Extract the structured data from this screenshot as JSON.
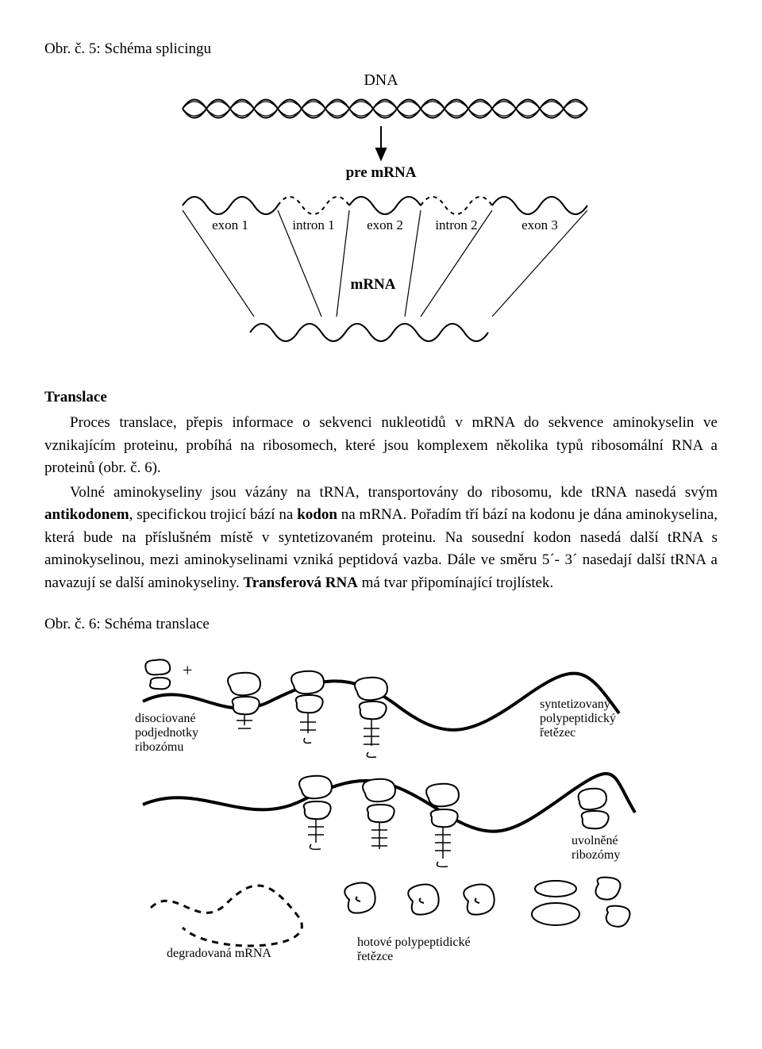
{
  "caption1": "Obr. č. 5: Schéma splicingu",
  "diagram1": {
    "label_dna": "DNA",
    "label_pre": "pre mRNA",
    "label_mrna": "mRNA",
    "segments": [
      "exon 1",
      "intron 1",
      "exon 2",
      "intron 2",
      "exon 3"
    ],
    "colors": {
      "stroke": "#000000",
      "bg": "#ffffff"
    }
  },
  "heading": "Translace",
  "para1_parts": {
    "a": "Proces translace, přepis informace o sekvenci nukleotidů v mRNA do sekvence aminokyselin ve vznikajícím proteinu, probíhá na ribosomech, které jsou komplexem několika typů ribosomální RNA a proteinů (obr. č. 6)."
  },
  "para2_parts": {
    "a": "Volné aminokyseliny jsou vázány na tRNA, transportovány do ribosomu, kde tRNA nasedá svým ",
    "b1": "antikodonem",
    "b": ", specifickou trojicí bází na ",
    "b2": "kodon",
    "c": " na mRNA. Pořadím tří bází na kodonu je dána aminokyselina, která bude na příslušném místě v syntetizovaném proteinu. Na sousední kodon nasedá další tRNA s aminokyselinou, mezi aminokyselinami vzniká peptidová vazba. Dále ve směru 5´- 3´ nasedají další tRNA a navazují se další aminokyseliny. ",
    "b3": "Transferová RNA",
    "d": " má tvar připomínající trojlístek."
  },
  "caption2": "Obr. č. 6: Schéma translace",
  "diagram2": {
    "labels": {
      "dissoc": "disociované\npodjednotky\nribozómu",
      "synth": "syntetizovaný\npolypeptidický\nřetězec",
      "freed": "uvolněné\nribozómy",
      "degraded": "degradovaná mRNA",
      "finished": "hotové polypeptidické\nřetězce"
    },
    "colors": {
      "stroke": "#000000",
      "bg": "#ffffff"
    }
  }
}
